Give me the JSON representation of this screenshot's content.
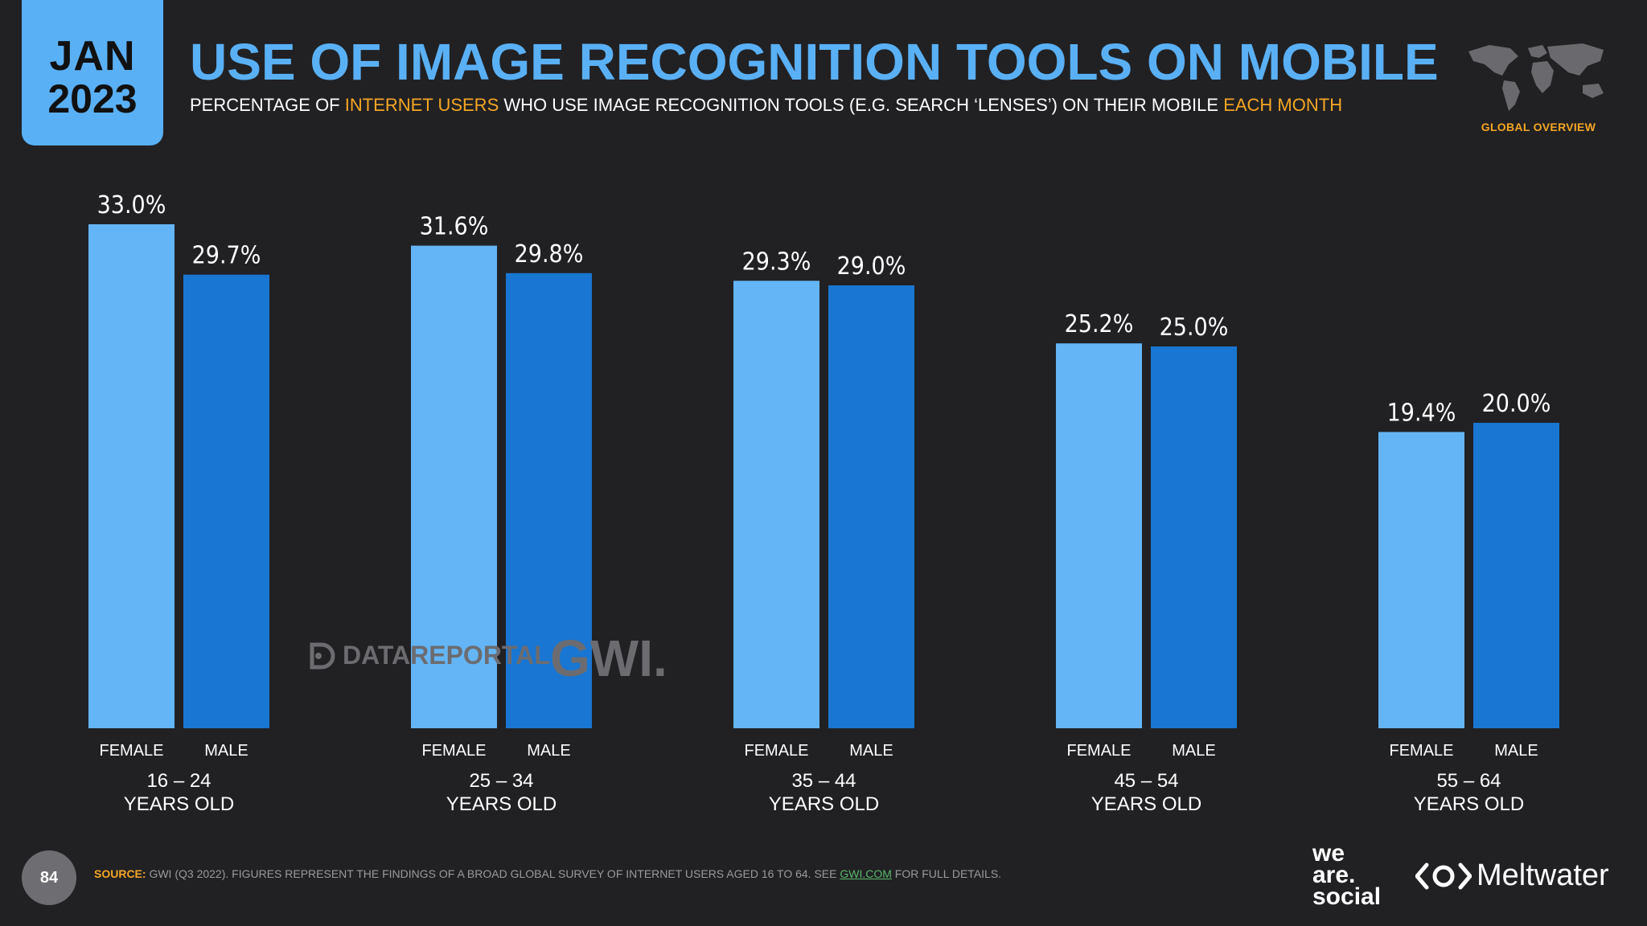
{
  "header": {
    "date_month": "JAN",
    "date_year": "2023",
    "title": "USE OF IMAGE RECOGNITION TOOLS ON MOBILE",
    "subtitle_part1": "PERCENTAGE OF ",
    "subtitle_hl1": "INTERNET USERS",
    "subtitle_part2": " WHO USE IMAGE RECOGNITION TOOLS (E.G. SEARCH ‘LENSES’) ON THEIR MOBILE ",
    "subtitle_hl2": "EACH MONTH",
    "global_overview": "GLOBAL OVERVIEW"
  },
  "chart_data": {
    "type": "bar",
    "title": "USE OF IMAGE RECOGNITION TOOLS ON MOBILE",
    "categories": [
      "16 – 24",
      "25 – 34",
      "35 – 44",
      "45 – 54",
      "55 – 64"
    ],
    "category_suffix": "YEARS OLD",
    "series": [
      {
        "name": "FEMALE",
        "color": "#64b5f6",
        "values": [
          33.0,
          31.6,
          29.3,
          25.2,
          19.4
        ]
      },
      {
        "name": "MALE",
        "color": "#1976d2",
        "values": [
          29.7,
          29.8,
          29.0,
          25.0,
          20.0
        ]
      }
    ],
    "value_format": "%",
    "ylim": [
      0,
      33
    ],
    "xlabel": "",
    "ylabel": ""
  },
  "watermark": {
    "datareportal": "DATAREPORTAL",
    "gwi": "GWI."
  },
  "footer": {
    "page_number": "84",
    "source_label": "SOURCE:",
    "source_text": " GWI (Q3 2022). FIGURES REPRESENT THE FINDINGS OF A BROAD GLOBAL SURVEY OF INTERNET USERS AGED 16 TO 64. SEE ",
    "source_link": "GWI.COM",
    "source_tail": " FOR FULL DETAILS.",
    "brand1_line1": "we",
    "brand1_line2": "are.",
    "brand1_line3": "social",
    "brand2": "Meltwater"
  }
}
